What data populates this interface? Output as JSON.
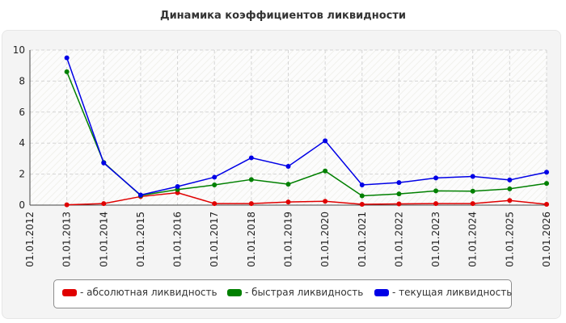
{
  "chart_data": {
    "type": "line",
    "title": "Динамика коэффициентов ликвидности",
    "xlabel": "",
    "ylabel": "",
    "ylim": [
      0,
      10
    ],
    "yticks": [
      "0",
      "2",
      "4",
      "6",
      "8",
      "10"
    ],
    "categories": [
      "01.01.2012",
      "01.01.2013",
      "01.01.2014",
      "01.01.2015",
      "01.01.2016",
      "01.01.2017",
      "01.01.2018",
      "01.01.2019",
      "01.01.2020",
      "01.01.2021",
      "01.01.2022",
      "01.01.2023",
      "01.01.2024",
      "01.01.2025",
      "01.01.2026"
    ],
    "grid": true,
    "legend_position": "bottom",
    "series": [
      {
        "name": "- абсолютная ликвидность",
        "color": "#e00000",
        "values": [
          null,
          0.02,
          0.1,
          0.55,
          0.8,
          0.1,
          0.1,
          0.2,
          0.25,
          0.05,
          0.08,
          0.1,
          0.1,
          0.3,
          0.05
        ]
      },
      {
        "name": "- быстрая ликвидность",
        "color": "#008000",
        "values": [
          null,
          8.6,
          2.75,
          0.62,
          1.0,
          1.3,
          1.65,
          1.35,
          2.2,
          0.6,
          0.72,
          0.92,
          0.9,
          1.05,
          1.4
        ]
      },
      {
        "name": "- текущая ликвидность",
        "color": "#0000e6",
        "values": [
          null,
          9.5,
          2.72,
          0.65,
          1.2,
          1.8,
          3.05,
          2.5,
          4.15,
          1.3,
          1.45,
          1.75,
          1.85,
          1.62,
          2.12
        ]
      }
    ]
  }
}
